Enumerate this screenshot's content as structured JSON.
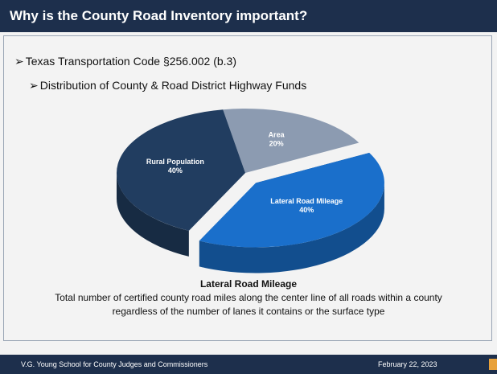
{
  "header": {
    "title": "Why is the County Road Inventory important?"
  },
  "bullets": [
    "Texas Transportation Code §256.002 (b.3)",
    "Distribution of County & Road District Highway Funds"
  ],
  "chart_data": {
    "type": "pie",
    "categories": [
      "Area",
      "Lateral Road Mileage",
      "Rural Population"
    ],
    "values": [
      20,
      40,
      40
    ],
    "value_labels": [
      "20%",
      "40%",
      "40%"
    ],
    "colors": [
      "#8c9bb1",
      "#1a6fcb",
      "#213d60"
    ]
  },
  "caption": {
    "title": "Lateral Road Mileage",
    "lines": [
      "Total number of certified county road miles along the center line of all roads within a county",
      "regardless of the number of lanes it contains or the surface type"
    ]
  },
  "footer": {
    "left": "V.G. Young School for County Judges and Commissioners",
    "right": "February 22, 2023"
  }
}
